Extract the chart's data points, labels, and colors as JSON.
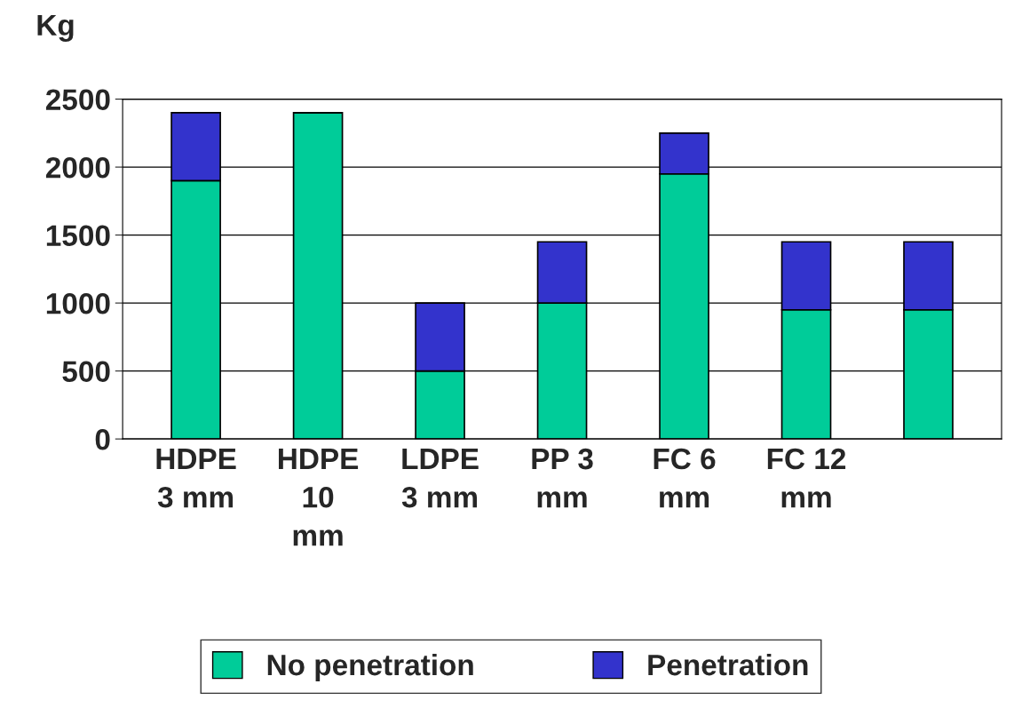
{
  "chart_data": {
    "type": "bar",
    "ylabel": "Kg",
    "stacked": true,
    "categories": [
      "HDPE\n3 mm",
      "HDPE\n10\nmm",
      "LDPE\n3 mm",
      "PP 3\nmm",
      "FC 6\nmm",
      "FC 12\nmm",
      null
    ],
    "series": [
      {
        "name": "No penetration",
        "color": "#00cc99",
        "values": [
          1900,
          2400,
          500,
          1000,
          1950,
          950,
          950
        ]
      },
      {
        "name": "Penetration",
        "color": "#3333cc",
        "values": [
          500,
          null,
          500,
          450,
          300,
          500,
          500
        ]
      }
    ],
    "ylim": [
      0,
      2500
    ],
    "yticks": [
      0,
      500,
      1000,
      1500,
      2000,
      2500
    ],
    "grid": "y",
    "legend": "bottom"
  }
}
